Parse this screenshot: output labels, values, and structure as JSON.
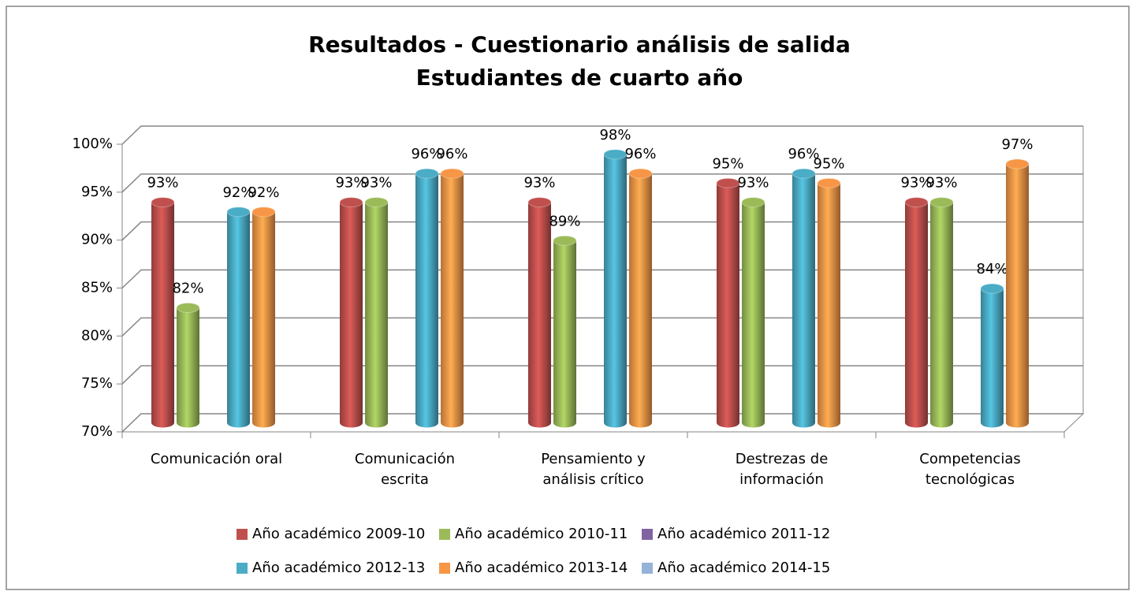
{
  "chart_data": {
    "type": "bar",
    "title": "Resultados - Cuestionario análisis de salida",
    "subtitle": "Estudiantes de cuarto año",
    "categories": [
      "Comunicación oral",
      "Comunicación\nescrita",
      "Pensamiento y\nanálisis crítico",
      "Destrezas de\ninformación",
      "Competencias\ntecnológicas"
    ],
    "series": [
      {
        "name": "Año académico 2009-10",
        "color": "#c0504d",
        "values": [
          93,
          93,
          93,
          95,
          93
        ],
        "value_labels": [
          "93%",
          "93%",
          "93%",
          "95%",
          "93%"
        ]
      },
      {
        "name": "Año académico 2010-11",
        "color": "#9bbb59",
        "values": [
          82,
          93,
          89,
          93,
          93
        ],
        "value_labels": [
          "82%",
          "93%",
          "89%",
          "93%",
          "93%"
        ]
      },
      {
        "name": "Año académico 2011-12",
        "color": "#8064a2",
        "values": [
          null,
          null,
          null,
          null,
          null
        ]
      },
      {
        "name": "Año académico 2012-13",
        "color": "#4bacc6",
        "values": [
          92,
          96,
          98,
          96,
          84
        ],
        "value_labels": [
          "92%",
          "96%",
          "98%",
          "96%",
          "84%"
        ]
      },
      {
        "name": "Año académico 2013-14",
        "color": "#f79646",
        "values": [
          92,
          96,
          96,
          95,
          97
        ],
        "value_labels": [
          "92%",
          "96%",
          "96%",
          "95%",
          "97%"
        ]
      },
      {
        "name": "Año académico 2014-15",
        "color": "#95b3d7",
        "values": [
          null,
          null,
          null,
          null,
          null
        ]
      }
    ],
    "ylim": [
      70,
      100
    ],
    "yticks": [
      {
        "value": 70,
        "label": "70%"
      },
      {
        "value": 75,
        "label": "75%"
      },
      {
        "value": 80,
        "label": "80%"
      },
      {
        "value": 85,
        "label": "85%"
      },
      {
        "value": 90,
        "label": "90%"
      },
      {
        "value": 95,
        "label": "95%"
      },
      {
        "value": 100,
        "label": "100%"
      }
    ],
    "grid": true,
    "legend": "bottom"
  }
}
